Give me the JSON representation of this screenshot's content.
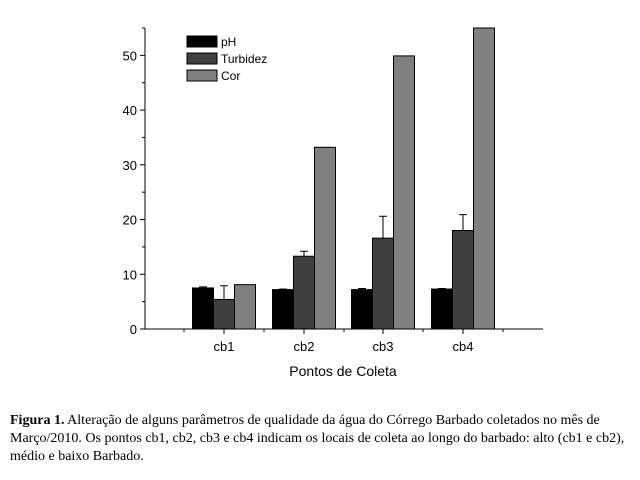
{
  "chart_data": {
    "type": "bar",
    "categories": [
      "cb1",
      "cb2",
      "cb3",
      "cb4"
    ],
    "series": [
      {
        "name": "pH",
        "color": "#000000",
        "values": [
          7.5,
          7.2,
          7.2,
          7.3
        ],
        "errors": [
          0.2,
          0.1,
          0.2,
          0.1
        ]
      },
      {
        "name": "Turbidez",
        "color": "#404040",
        "values": [
          5.4,
          13.3,
          16.6,
          18.0
        ],
        "errors": [
          2.5,
          0.9,
          4.0,
          2.9
        ]
      },
      {
        "name": "Cor",
        "color": "#808080",
        "values": [
          8.1,
          33.2,
          49.9,
          55.0
        ],
        "errors": [
          0,
          0,
          0,
          0
        ]
      }
    ],
    "xlabel": "Pontos de Coleta",
    "ylabel": "",
    "ylim": [
      0,
      55
    ],
    "yticks": [
      "0",
      "10",
      "20",
      "30",
      "40",
      "50"
    ],
    "legend_position": "top-left",
    "grid": false
  },
  "caption": {
    "label": "Figura 1.",
    "text": " Alteração de alguns parâmetros de qualidade da água do Córrego Barbado coletados no mês de Março/2010. Os pontos cb1, cb2, cb3 e cb4 indicam os locais de coleta ao longo do barbado: alto (cb1 e cb2), médio e baixo Barbado."
  }
}
